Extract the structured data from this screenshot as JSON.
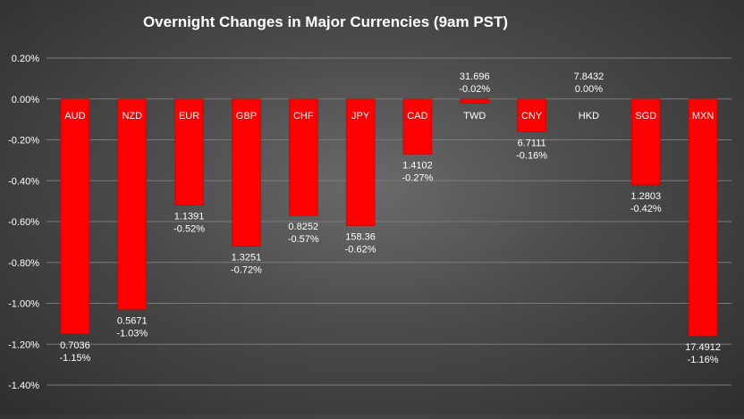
{
  "chart_data": {
    "type": "bar",
    "title": "Overnight Changes in Major Currencies (9am PST)",
    "xlabel": "",
    "ylabel": "",
    "ylim": [
      -1.4,
      0.2
    ],
    "yticks": [
      "0.20%",
      "0.00%",
      "-0.20%",
      "-0.40%",
      "-0.60%",
      "-0.80%",
      "-1.00%",
      "-1.20%",
      "-1.40%"
    ],
    "ytick_values": [
      0.2,
      0.0,
      -0.2,
      -0.4,
      -0.6,
      -0.8,
      -1.0,
      -1.2,
      -1.4
    ],
    "grid": true,
    "bar_color": "#ff0000",
    "categories": [
      "AUD",
      "NZD",
      "EUR",
      "GBP",
      "CHF",
      "JPY",
      "CAD",
      "TWD",
      "CNY",
      "HKD",
      "SGD",
      "MXN"
    ],
    "values": [
      -1.15,
      -1.03,
      -0.52,
      -0.72,
      -0.57,
      -0.62,
      -0.27,
      -0.02,
      -0.16,
      0.0,
      -0.42,
      -1.16
    ],
    "rates": [
      "0.7036",
      "0.5671",
      "1.1391",
      "1.3251",
      "0.8252",
      "158.36",
      "1.4102",
      "31.696",
      "6.7111",
      "7.8432",
      "1.2803",
      "17.4912"
    ],
    "change_labels": [
      "-1.15%",
      "-1.03%",
      "-0.52%",
      "-0.72%",
      "-0.57%",
      "-0.62%",
      "-0.27%",
      "-0.02%",
      "-0.16%",
      "0.00%",
      "-0.42%",
      "-1.16%"
    ]
  }
}
